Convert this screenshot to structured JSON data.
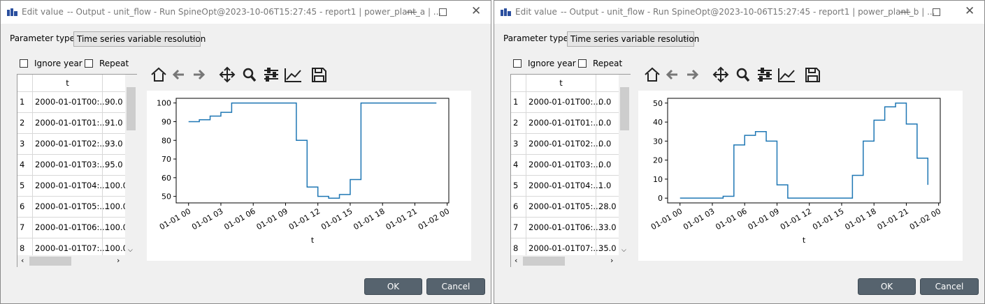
{
  "dialogs": [
    {
      "title": {
        "app": "Edit value",
        "text": "-- Output - unit_flow - Run SpineOpt@2023-10-06T15:27:45 - report1 | power_plant_a | ..."
      },
      "parameter_type": {
        "label": "Parameter type",
        "value": "Time series variable resolution"
      },
      "options": [
        "Ignore year",
        "Repeat"
      ],
      "table": {
        "header": "t",
        "rows": [
          [
            "1",
            "2000-01-01T00:...",
            "90.0"
          ],
          [
            "2",
            "2000-01-01T01:...",
            "91.0"
          ],
          [
            "3",
            "2000-01-01T02:...",
            "93.0"
          ],
          [
            "4",
            "2000-01-01T03:...",
            "95.0"
          ],
          [
            "5",
            "2000-01-01T04:...",
            "100.0"
          ],
          [
            "6",
            "2000-01-01T05:...",
            "100.0"
          ],
          [
            "7",
            "2000-01-01T06:...",
            "100.0"
          ],
          [
            "8",
            "2000-01-01T07:...",
            "100.0"
          ]
        ]
      },
      "chart_data": {
        "type": "step",
        "xlabel": "t",
        "x": [
          0,
          1,
          2,
          3,
          4,
          5,
          6,
          7,
          8,
          9,
          10,
          11,
          12,
          13,
          14,
          15,
          16,
          17,
          18,
          19,
          20,
          21,
          22,
          23
        ],
        "series": [
          {
            "color": "#1f77b4",
            "values": [
              90,
              91,
              93,
              95,
              100,
              100,
              100,
              100,
              100,
              100,
              80,
              55,
              50,
              49,
              51,
              59,
              100,
              100,
              100,
              100,
              100,
              100,
              100,
              100
            ]
          }
        ],
        "xlim": [
          -1.15,
          24.15
        ],
        "xticks": [
          {
            "value": 0,
            "label": "01-01 00"
          },
          {
            "value": 3,
            "label": "01-01 03"
          },
          {
            "value": 6,
            "label": "01-01 06"
          },
          {
            "value": 9,
            "label": "01-01 09"
          },
          {
            "value": 12,
            "label": "01-01 12"
          },
          {
            "value": 15,
            "label": "01-01 15"
          },
          {
            "value": 18,
            "label": "01-01 18"
          },
          {
            "value": 21,
            "label": "01-01 21"
          },
          {
            "value": 24,
            "label": "01-02 00"
          }
        ],
        "ylim": [
          46.5,
          102.5
        ],
        "yticks": [
          50,
          60,
          70,
          80,
          90,
          100
        ]
      },
      "buttons": [
        "OK",
        "Cancel"
      ]
    },
    {
      "title": {
        "app": "Edit value",
        "text": "-- Output - unit_flow - Run SpineOpt@2023-10-06T15:27:45 - report1 | power_plant_b | ..."
      },
      "parameter_type": {
        "label": "Parameter type",
        "value": "Time series variable resolution"
      },
      "options": [
        "Ignore year",
        "Repeat"
      ],
      "table": {
        "header": "t",
        "rows": [
          [
            "1",
            "2000-01-01T00:...",
            "0.0"
          ],
          [
            "2",
            "2000-01-01T01:...",
            "0.0"
          ],
          [
            "3",
            "2000-01-01T02:...",
            "0.0"
          ],
          [
            "4",
            "2000-01-01T03:...",
            "0.0"
          ],
          [
            "5",
            "2000-01-01T04:...",
            "1.0"
          ],
          [
            "6",
            "2000-01-01T05:...",
            "28.0"
          ],
          [
            "7",
            "2000-01-01T06:...",
            "33.0"
          ],
          [
            "8",
            "2000-01-01T07:...",
            "35.0"
          ]
        ]
      },
      "chart_data": {
        "type": "step",
        "xlabel": "t",
        "x": [
          0,
          1,
          2,
          3,
          4,
          5,
          6,
          7,
          8,
          9,
          10,
          11,
          12,
          13,
          14,
          15,
          16,
          17,
          18,
          19,
          20,
          21,
          22,
          23
        ],
        "series": [
          {
            "color": "#1f77b4",
            "values": [
              0,
              0,
              0,
              0,
              1,
              28,
              33,
              35,
              30,
              7,
              0,
              0,
              0,
              0,
              0,
              0,
              12,
              30,
              41,
              48,
              50,
              39,
              21,
              7
            ]
          }
        ],
        "xlim": [
          -1.15,
          24.15
        ],
        "xticks": [
          {
            "value": 0,
            "label": "01-01 00"
          },
          {
            "value": 3,
            "label": "01-01 03"
          },
          {
            "value": 6,
            "label": "01-01 06"
          },
          {
            "value": 9,
            "label": "01-01 09"
          },
          {
            "value": 12,
            "label": "01-01 12"
          },
          {
            "value": 15,
            "label": "01-01 15"
          },
          {
            "value": 18,
            "label": "01-01 18"
          },
          {
            "value": 21,
            "label": "01-01 21"
          },
          {
            "value": 24,
            "label": "01-02 00"
          }
        ],
        "ylim": [
          -2.5,
          52.5
        ],
        "yticks": [
          0,
          10,
          20,
          30,
          40,
          50
        ]
      },
      "buttons": [
        "OK",
        "Cancel"
      ]
    }
  ]
}
